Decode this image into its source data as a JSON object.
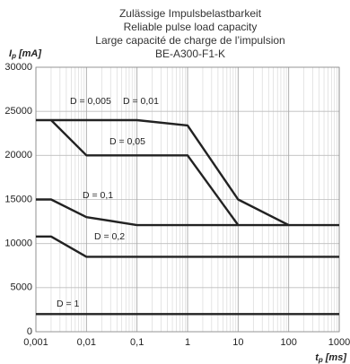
{
  "chart_data": {
    "type": "line",
    "title": [
      "Zulässige Impulsbelastbarkeit",
      "Reliable pulse load capacity",
      "Large capacité de charge de l’impulsion",
      "BE-A300-F1-K"
    ],
    "y_label": {
      "symbol": "I",
      "subscript": "p",
      "unit": "[mA]"
    },
    "x_label": {
      "symbol": "t",
      "subscript": "p",
      "unit": "[ms]"
    },
    "xscale": "log",
    "xlim": [
      0.001,
      1000
    ],
    "xticks": [
      {
        "value": 0.001,
        "label": "0,001"
      },
      {
        "value": 0.01,
        "label": "0,01"
      },
      {
        "value": 0.1,
        "label": "0,1"
      },
      1,
      10,
      100,
      1000
    ],
    "ylim": [
      0,
      30000
    ],
    "yticks": [
      0,
      5000,
      10000,
      15000,
      20000,
      25000,
      30000
    ],
    "grid": true,
    "minor_grid": true,
    "annotations": [
      "D = 0,01"
    ],
    "series": [
      {
        "name": "D = 0,005",
        "color": "#222222",
        "x": [
          0.001,
          0.1,
          1,
          10,
          100
        ],
        "values": [
          24000,
          24000,
          23400,
          15000,
          12100
        ]
      },
      {
        "name": "D = 0,05",
        "color": "#222222",
        "x": [
          0.002,
          0.01,
          1,
          10
        ],
        "values": [
          24000,
          20000,
          20000,
          12100
        ]
      },
      {
        "name": "D = 0,1",
        "color": "#222222",
        "x": [
          0.001,
          0.002,
          0.01,
          0.1,
          1000
        ],
        "values": [
          15000,
          15000,
          13000,
          12100,
          12100
        ]
      },
      {
        "name": "D = 0,2",
        "color": "#222222",
        "x": [
          0.001,
          0.002,
          0.01,
          1000
        ],
        "values": [
          10800,
          10800,
          8500,
          8500
        ]
      },
      {
        "name": "D = 1",
        "color": "#222222",
        "x": [
          0.001,
          1000
        ],
        "values": [
          2000,
          2000
        ]
      }
    ]
  }
}
